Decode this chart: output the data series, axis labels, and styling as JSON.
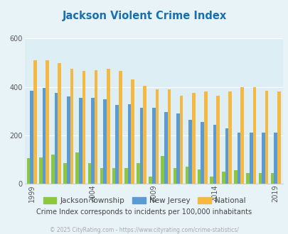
{
  "title": "Jackson Violent Crime Index",
  "title_color": "#1a6faf",
  "subtitle": "Crime Index corresponds to incidents per 100,000 inhabitants",
  "subtitle_color": "#444444",
  "copyright": "© 2025 CityRating.com - https://www.cityrating.com/crime-statistics/",
  "copyright_color": "#aaaaaa",
  "years_data": [
    1999,
    2000,
    2001,
    2002,
    2003,
    2004,
    2005,
    2006,
    2007,
    2008,
    2009,
    2010,
    2011,
    2012,
    2013,
    2014,
    2015,
    2016,
    2017,
    2018,
    2019
  ],
  "jackson_data": [
    105,
    110,
    120,
    85,
    130,
    85,
    65,
    65,
    65,
    85,
    30,
    115,
    65,
    70,
    60,
    30,
    50,
    55,
    45,
    45,
    45
  ],
  "nj_data": [
    385,
    395,
    375,
    360,
    355,
    355,
    350,
    325,
    330,
    315,
    315,
    295,
    290,
    265,
    255,
    245,
    230,
    210,
    210,
    210,
    210
  ],
  "national_data": [
    510,
    510,
    500,
    475,
    465,
    470,
    475,
    465,
    430,
    405,
    390,
    390,
    365,
    375,
    380,
    365,
    380,
    400,
    398,
    385,
    380
  ],
  "jackson_color": "#8dc63f",
  "nj_color": "#5b9bd5",
  "national_color": "#f5b942",
  "bg_color": "#e8f3f8",
  "plot_bg": "#ddeef5",
  "ylim": [
    0,
    600
  ],
  "yticks": [
    0,
    200,
    400,
    600
  ],
  "grid_color": "#ffffff",
  "bar_width": 0.27,
  "tick_years": [
    1999,
    2004,
    2009,
    2014,
    2019
  ],
  "legend_labels": [
    "Jackson Township",
    "New Jersey",
    "National"
  ]
}
